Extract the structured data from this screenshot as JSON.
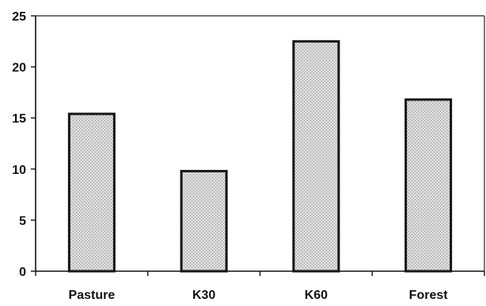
{
  "chart_data": {
    "type": "bar",
    "categories": [
      "Pasture",
      "K30",
      "K60",
      "Forest"
    ],
    "values": [
      15.4,
      9.8,
      22.5,
      16.8
    ],
    "title": "",
    "xlabel": "",
    "ylabel": "",
    "ylim": [
      0,
      25
    ],
    "yticks": [
      0,
      5,
      10,
      15,
      20,
      25
    ],
    "grid": false,
    "legend": "none",
    "bar_fill": "#cfcfcf",
    "bar_edge": "#151515"
  }
}
